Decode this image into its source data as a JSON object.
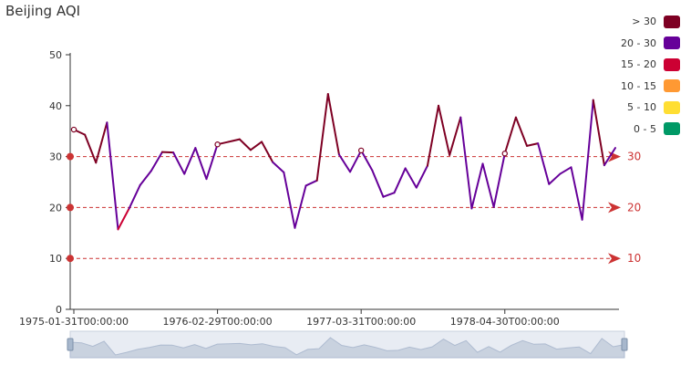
{
  "chart_data": {
    "type": "line",
    "title": "Beijing AQI",
    "xlabel": "",
    "ylabel": "",
    "ylim": [
      0,
      50
    ],
    "y_ticks": [
      0,
      10,
      20,
      30,
      40,
      50
    ],
    "x_tick_labels": [
      "1975-01-31T00:00:00",
      "1976-02-29T00:00:00",
      "1977-03-31T00:00:00",
      "1978-04-30T00:00:00"
    ],
    "x_tick_indices": [
      0,
      13,
      26,
      39
    ],
    "series": [
      {
        "values": [
          35.3,
          34.3,
          28.8,
          36.7,
          15.7,
          19.8,
          24.4,
          27.2,
          30.9,
          30.8,
          26.6,
          31.7,
          25.6,
          32.4,
          32.9,
          33.4,
          31.3,
          32.9,
          28.9,
          26.9,
          16.0,
          24.3,
          25.3,
          42.3,
          30.4,
          27.0,
          31.2,
          27.3,
          22.1,
          22.9,
          27.7,
          23.9,
          28.2,
          40.0,
          30.3,
          37.7,
          19.8,
          28.6,
          20.1,
          30.6,
          37.7,
          32.1,
          32.6,
          24.6,
          26.6,
          27.9,
          17.6,
          41.1,
          28.3,
          31.7
        ]
      }
    ],
    "highlighted_point_indices": [
      0,
      13,
      26,
      39
    ],
    "mark_lines": [
      {
        "value": 30,
        "label": "30"
      },
      {
        "value": 20,
        "label": "20"
      },
      {
        "value": 10,
        "label": "10"
      }
    ],
    "visual_map": [
      {
        "label": "> 30",
        "color": "#7e0023"
      },
      {
        "label": "20 - 30",
        "color": "#660099"
      },
      {
        "label": "15 - 20",
        "color": "#cc0033"
      },
      {
        "label": "10 - 15",
        "color": "#ff9933"
      },
      {
        "label": "5 - 10",
        "color": "#ffde33"
      },
      {
        "label": "0 - 5",
        "color": "#096"
      }
    ],
    "mark_line_color": "#cc3333",
    "legend_position": "top-right",
    "grid": false,
    "data_zoom": {
      "start": 0,
      "end": 100
    }
  }
}
